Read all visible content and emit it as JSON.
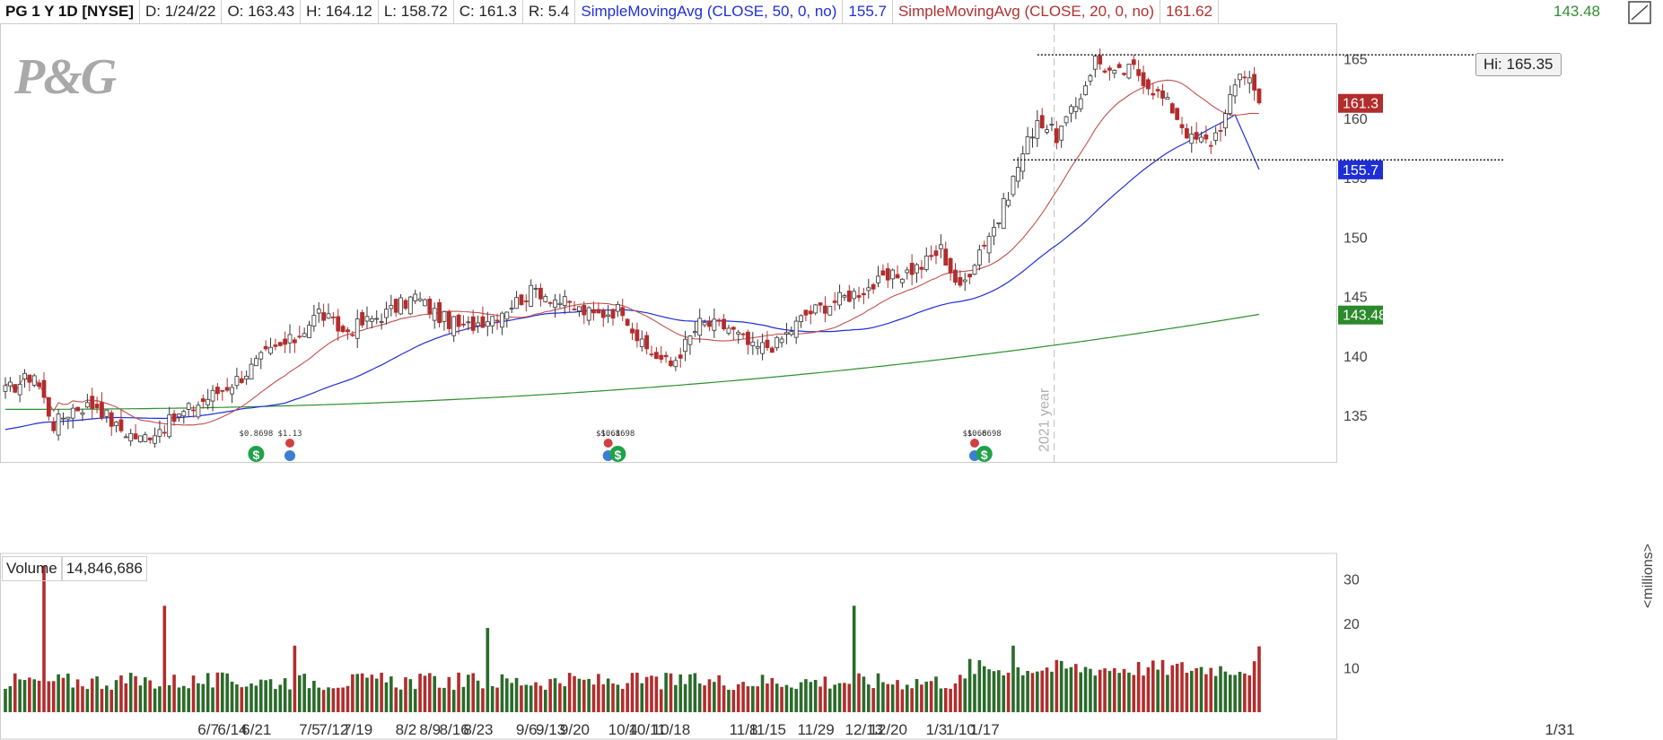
{
  "header": {
    "symbol": "PG 1 Y 1D [NYSE]",
    "date": "D: 1/24/22",
    "open": "O: 163.43",
    "high": "H: 164.12",
    "low": "L: 158.72",
    "close": "C: 161.3",
    "range": "R: 5.4",
    "ma50_label": "SimpleMovingAvg (CLOSE, 50, 0, no)",
    "ma50_value": "155.7",
    "ma20_label": "SimpleMovingAvg (CLOSE, 20, 0, no)",
    "ma20_value": "161.62",
    "ma200_value": "143.48"
  },
  "logo_text": "P&G",
  "hi_label": "Hi: 165.35",
  "vertical_marker_label": "2021 year",
  "volume_label": "Volume",
  "volume_value": "14,846,686",
  "volume_unit": "<millions>",
  "price_tags": [
    {
      "value": "161.3",
      "price": 161.3,
      "color": "#b22d2d"
    },
    {
      "value": "155.7",
      "price": 155.7,
      "color": "#1f2fd6"
    },
    {
      "value": "143.48",
      "price": 143.48,
      "color": "#2b8a2b"
    }
  ],
  "colors": {
    "up": "#2a6b2a",
    "down": "#b22d2d",
    "ma50": "#1f2fd6",
    "ma20": "#c0504d",
    "ma200": "#2f8f2f"
  },
  "chart_data": [
    {
      "type": "candlestick",
      "title": "PG 1 Y 1D [NYSE]",
      "ylim": [
        131,
        168
      ],
      "y_ticks": [
        135,
        140,
        145,
        150,
        155,
        160,
        165
      ],
      "x_tick_labels": [
        "6/7",
        "6/14",
        "6/21",
        "7/5",
        "7/12",
        "7/19",
        "8/2",
        "8/9",
        "8/16",
        "8/23",
        "9/6",
        "9/13",
        "9/20",
        "10/4",
        "10/11",
        "10/18",
        "11/8",
        "11/15",
        "11/29",
        "12/13",
        "12/20",
        "1/3",
        "1/10",
        "1/17",
        "1/31"
      ],
      "close_anchors": [
        [
          0,
          137.0
        ],
        [
          6,
          138.5
        ],
        [
          10,
          134.2
        ],
        [
          14,
          135.6
        ],
        [
          19,
          135.9
        ],
        [
          23,
          134.0
        ],
        [
          28,
          133.0
        ],
        [
          34,
          134.4
        ],
        [
          40,
          136.0
        ],
        [
          45,
          137.2
        ],
        [
          49,
          138.3
        ],
        [
          54,
          140.1
        ],
        [
          60,
          141.4
        ],
        [
          65,
          143.7
        ],
        [
          70,
          142.0
        ],
        [
          80,
          143.8
        ],
        [
          85,
          145.0
        ],
        [
          90,
          143.3
        ],
        [
          95,
          142.3
        ],
        [
          102,
          143.6
        ],
        [
          110,
          145.6
        ],
        [
          116,
          144.4
        ],
        [
          122,
          143.4
        ],
        [
          128,
          144.0
        ],
        [
          132,
          140.8
        ],
        [
          138,
          139.2
        ],
        [
          144,
          142.7
        ],
        [
          150,
          142.4
        ],
        [
          155,
          140.6
        ],
        [
          160,
          141.0
        ],
        [
          166,
          143.5
        ],
        [
          172,
          144.6
        ],
        [
          178,
          145.6
        ],
        [
          184,
          146.6
        ],
        [
          190,
          147.6
        ],
        [
          194,
          149.0
        ],
        [
          198,
          145.5
        ],
        [
          202,
          149.0
        ],
        [
          206,
          151.5
        ],
        [
          210,
          156.0
        ],
        [
          214,
          160.0
        ],
        [
          218,
          158.5
        ],
        [
          222,
          161.0
        ],
        [
          226,
          165.0
        ],
        [
          230,
          163.6
        ],
        [
          234,
          164.2
        ],
        [
          238,
          162.5
        ],
        [
          242,
          160.8
        ],
        [
          246,
          158.2
        ],
        [
          250,
          158.0
        ],
        [
          253,
          160.2
        ],
        [
          256,
          164.0
        ],
        [
          258,
          163.4
        ],
        [
          260,
          161.3
        ]
      ],
      "dividends": [
        {
          "label": "$0.8698",
          "bar": 52
        },
        {
          "label": "$1.13",
          "bar": 59
        },
        {
          "label": "$1.61",
          "bar": 125
        },
        {
          "label": "$0.8698",
          "bar": 127
        },
        {
          "label": "$1.66",
          "bar": 201
        },
        {
          "label": "$0.8698",
          "bar": 203
        }
      ],
      "resistance": 165.35,
      "support": 156.5,
      "series": [
        {
          "name": "SimpleMovingAvg (CLOSE, 50, 0, no)",
          "last": 155.7
        },
        {
          "name": "SimpleMovingAvg (CLOSE, 20, 0, no)",
          "last": 161.62
        },
        {
          "name": "",
          "last": 143.48
        }
      ]
    },
    {
      "type": "bar",
      "title": "Volume",
      "ylabel": "<millions>",
      "ylim": [
        0,
        36
      ],
      "y_ticks": [
        10,
        20,
        30
      ],
      "last_value": 14846686,
      "spikes": [
        [
          8,
          33
        ],
        [
          33,
          24
        ],
        [
          60,
          15
        ],
        [
          100,
          19
        ],
        [
          176,
          24
        ],
        [
          200,
          12
        ],
        [
          209,
          15
        ]
      ]
    }
  ]
}
